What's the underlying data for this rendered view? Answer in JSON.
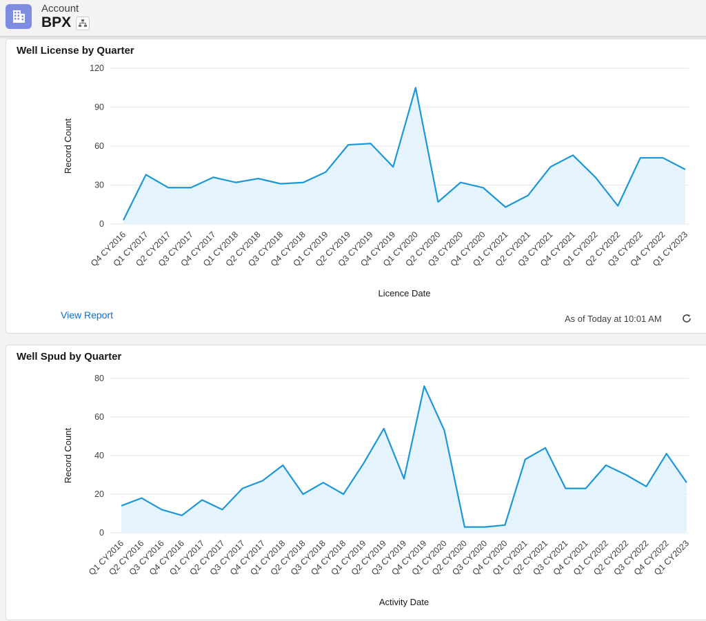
{
  "header": {
    "object_label": "Account",
    "record_name": "BPX",
    "icons": {
      "account": "building-icon",
      "hierarchy": "hierarchy-icon"
    }
  },
  "cards": [
    {
      "title": "Well License by Quarter",
      "view_report": "View Report",
      "as_of": "As of Today at 10:01 AM"
    },
    {
      "title": "Well Spud by Quarter"
    }
  ],
  "colors": {
    "line": "#1b96d8",
    "fill": "#e5f3fc",
    "grid": "#e5e5e5",
    "link": "#0b6ed4"
  },
  "chart_data": [
    {
      "type": "area",
      "title": "Well License by Quarter",
      "xlabel": "Licence Date",
      "ylabel": "Record Count",
      "ylim": [
        0,
        120
      ],
      "yticks": [
        0,
        30,
        60,
        90,
        120
      ],
      "grid": true,
      "categories": [
        "Q4 CY2016",
        "Q1 CY2017",
        "Q2 CY2017",
        "Q3 CY2017",
        "Q4 CY2017",
        "Q1 CY2018",
        "Q2 CY2018",
        "Q3 CY2018",
        "Q4 CY2018",
        "Q1 CY2019",
        "Q2 CY2019",
        "Q3 CY2019",
        "Q4 CY2019",
        "Q1 CY2020",
        "Q2 CY2020",
        "Q3 CY2020",
        "Q4 CY2020",
        "Q1 CY2021",
        "Q2 CY2021",
        "Q3 CY2021",
        "Q4 CY2021",
        "Q1 CY2022",
        "Q2 CY2022",
        "Q3 CY2022",
        "Q4 CY2022",
        "Q1 CY2023"
      ],
      "values": [
        3,
        38,
        28,
        28,
        36,
        32,
        35,
        31,
        32,
        40,
        61,
        62,
        44,
        105,
        17,
        32,
        28,
        13,
        22,
        44,
        53,
        36,
        14,
        51,
        51,
        42
      ]
    },
    {
      "type": "area",
      "title": "Well Spud by Quarter",
      "xlabel": "Activity Date",
      "ylabel": "Record Count",
      "ylim": [
        0,
        80
      ],
      "yticks": [
        0,
        20,
        40,
        60,
        80
      ],
      "grid": true,
      "categories": [
        "Q1 CY2016",
        "Q2 CY2016",
        "Q3 CY2016",
        "Q4 CY2016",
        "Q1 CY2017",
        "Q2 CY2017",
        "Q3 CY2017",
        "Q4 CY2017",
        "Q1 CY2018",
        "Q2 CY2018",
        "Q3 CY2018",
        "Q4 CY2018",
        "Q1 CY2019",
        "Q2 CY2019",
        "Q3 CY2019",
        "Q4 CY2019",
        "Q1 CY2020",
        "Q2 CY2020",
        "Q3 CY2020",
        "Q4 CY2020",
        "Q1 CY2021",
        "Q2 CY2021",
        "Q3 CY2021",
        "Q4 CY2021",
        "Q1 CY2022",
        "Q2 CY2022",
        "Q3 CY2022",
        "Q4 CY2022",
        "Q1 CY2023"
      ],
      "values": [
        14,
        18,
        12,
        9,
        17,
        12,
        23,
        27,
        35,
        20,
        26,
        20,
        36,
        54,
        28,
        76,
        53,
        3,
        3,
        4,
        38,
        44,
        23,
        23,
        35,
        30,
        24,
        41,
        26
      ]
    }
  ]
}
